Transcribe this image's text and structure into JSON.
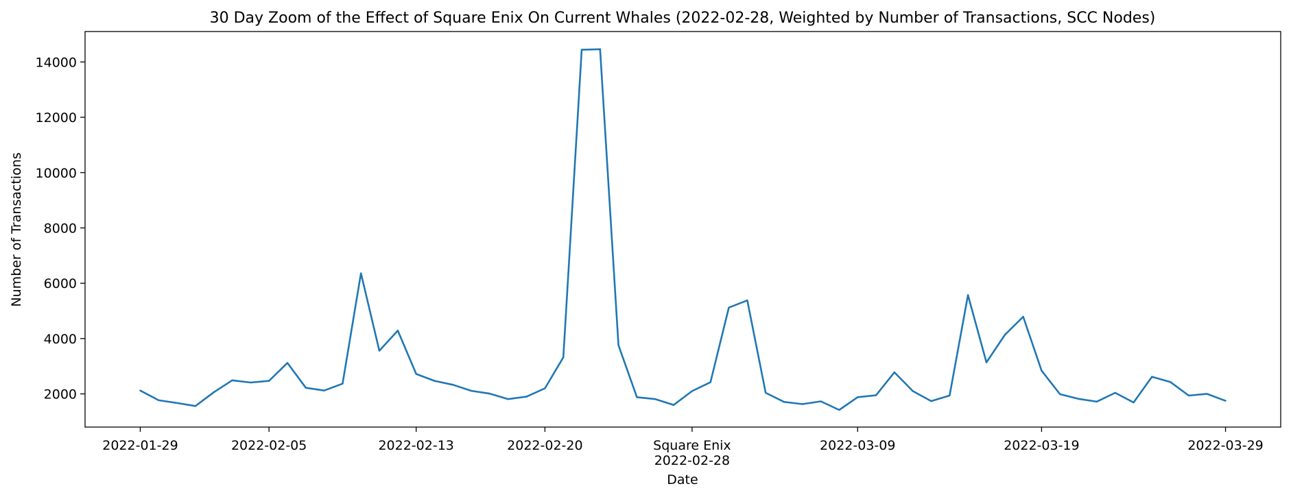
{
  "chart_data": {
    "type": "line",
    "title": "30 Day Zoom of the Effect of Square Enix On Current Whales (2022-02-28, Weighted by Number of Transactions, SCC Nodes)",
    "xlabel": "Date",
    "ylabel": "Number of Transactions",
    "xlim": [
      "2022-01-26",
      "2022-04-01"
    ],
    "ylim": [
      800,
      15100
    ],
    "x_ticks": [
      "2022-01-29",
      "2022-02-05",
      "2022-02-13",
      "2022-02-20",
      "2022-02-28",
      "2022-03-09",
      "2022-03-19",
      "2022-03-29"
    ],
    "event": {
      "label": "Square Enix",
      "date": "2022-02-28"
    },
    "y_ticks": [
      2000,
      4000,
      6000,
      8000,
      10000,
      12000,
      14000
    ],
    "grid": false,
    "line_color": "#1f77b4",
    "series": [
      {
        "x": [
          "2022-01-29",
          "2022-01-30",
          "2022-01-31",
          "2022-02-01",
          "2022-02-02",
          "2022-02-03",
          "2022-02-04",
          "2022-02-05",
          "2022-02-06",
          "2022-02-07",
          "2022-02-08",
          "2022-02-09",
          "2022-02-10",
          "2022-02-11",
          "2022-02-12",
          "2022-02-13",
          "2022-02-14",
          "2022-02-15",
          "2022-02-16",
          "2022-02-17",
          "2022-02-18",
          "2022-02-19",
          "2022-02-20",
          "2022-02-21",
          "2022-02-22",
          "2022-02-23",
          "2022-02-24",
          "2022-02-25",
          "2022-02-26",
          "2022-02-27",
          "2022-02-28",
          "2022-03-01",
          "2022-03-02",
          "2022-03-03",
          "2022-03-04",
          "2022-03-05",
          "2022-03-06",
          "2022-03-07",
          "2022-03-08",
          "2022-03-09",
          "2022-03-10",
          "2022-03-11",
          "2022-03-12",
          "2022-03-13",
          "2022-03-14",
          "2022-03-15",
          "2022-03-16",
          "2022-03-17",
          "2022-03-18",
          "2022-03-19",
          "2022-03-20",
          "2022-03-21",
          "2022-03-22",
          "2022-03-23",
          "2022-03-24",
          "2022-03-25",
          "2022-03-26",
          "2022-03-27",
          "2022-03-28",
          "2022-03-29"
        ],
        "y": [
          2120,
          1770,
          1670,
          1560,
          2060,
          2490,
          2410,
          2470,
          3120,
          2220,
          2120,
          2370,
          6360,
          3560,
          4290,
          2720,
          2470,
          2330,
          2110,
          2010,
          1810,
          1900,
          2200,
          3320,
          14440,
          14460,
          3760,
          1880,
          1810,
          1600,
          2100,
          2420,
          5120,
          5380,
          2040,
          1710,
          1630,
          1730,
          1420,
          1880,
          1950,
          2780,
          2100,
          1740,
          1940,
          5570,
          3140,
          4130,
          4790,
          2840,
          1990,
          1820,
          1720,
          2040,
          1690,
          2620,
          2430,
          1940,
          2000,
          1750
        ]
      }
    ]
  }
}
